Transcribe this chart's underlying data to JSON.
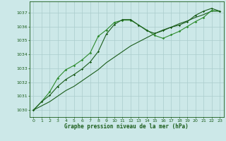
{
  "bg_color": "#cce8e8",
  "grid_color": "#aacccc",
  "line_color_dark": "#1a5c1a",
  "line_color_light": "#2d8b2d",
  "title": "Graphe pression niveau de la mer (hPa)",
  "xlim": [
    -0.5,
    23.5
  ],
  "ylim": [
    1029.5,
    1037.8
  ],
  "yticks": [
    1030,
    1031,
    1032,
    1033,
    1034,
    1035,
    1036,
    1037
  ],
  "xticks": [
    0,
    1,
    2,
    3,
    4,
    5,
    6,
    7,
    8,
    9,
    10,
    11,
    12,
    13,
    14,
    15,
    16,
    17,
    18,
    19,
    20,
    21,
    22,
    23
  ],
  "series1_x": [
    0,
    1,
    2,
    3,
    4,
    5,
    6,
    7,
    8,
    9,
    10,
    11,
    12,
    13,
    14,
    15,
    16,
    17,
    18,
    19,
    20,
    21,
    22,
    23
  ],
  "series1_y": [
    1030.0,
    1030.3,
    1030.6,
    1031.0,
    1031.4,
    1031.7,
    1032.1,
    1032.5,
    1032.9,
    1033.4,
    1033.8,
    1034.2,
    1034.6,
    1034.9,
    1035.2,
    1035.5,
    1035.7,
    1035.95,
    1036.2,
    1036.4,
    1036.65,
    1036.85,
    1037.1,
    1037.1
  ],
  "series2_x": [
    0,
    1,
    2,
    3,
    4,
    5,
    6,
    7,
    8,
    9,
    10,
    11,
    12,
    13,
    14,
    15,
    16,
    17,
    18,
    19,
    20,
    21,
    22,
    23
  ],
  "series2_y": [
    1030.0,
    1030.6,
    1031.3,
    1032.3,
    1032.9,
    1033.2,
    1033.6,
    1034.1,
    1035.3,
    1035.75,
    1036.3,
    1036.45,
    1036.45,
    1036.1,
    1035.75,
    1035.35,
    1035.15,
    1035.4,
    1035.65,
    1036.0,
    1036.35,
    1036.65,
    1037.15,
    1037.1
  ],
  "series3_x": [
    0,
    1,
    2,
    3,
    4,
    5,
    6,
    7,
    8,
    9,
    10,
    11,
    12,
    13,
    14,
    15,
    16,
    17,
    18,
    19,
    20,
    21,
    22,
    23
  ],
  "series3_y": [
    1030.0,
    1030.6,
    1031.05,
    1031.7,
    1032.2,
    1032.55,
    1032.95,
    1033.45,
    1034.2,
    1035.45,
    1036.15,
    1036.5,
    1036.5,
    1036.1,
    1035.7,
    1035.5,
    1035.75,
    1035.95,
    1036.1,
    1036.35,
    1036.8,
    1037.1,
    1037.3,
    1037.1
  ]
}
